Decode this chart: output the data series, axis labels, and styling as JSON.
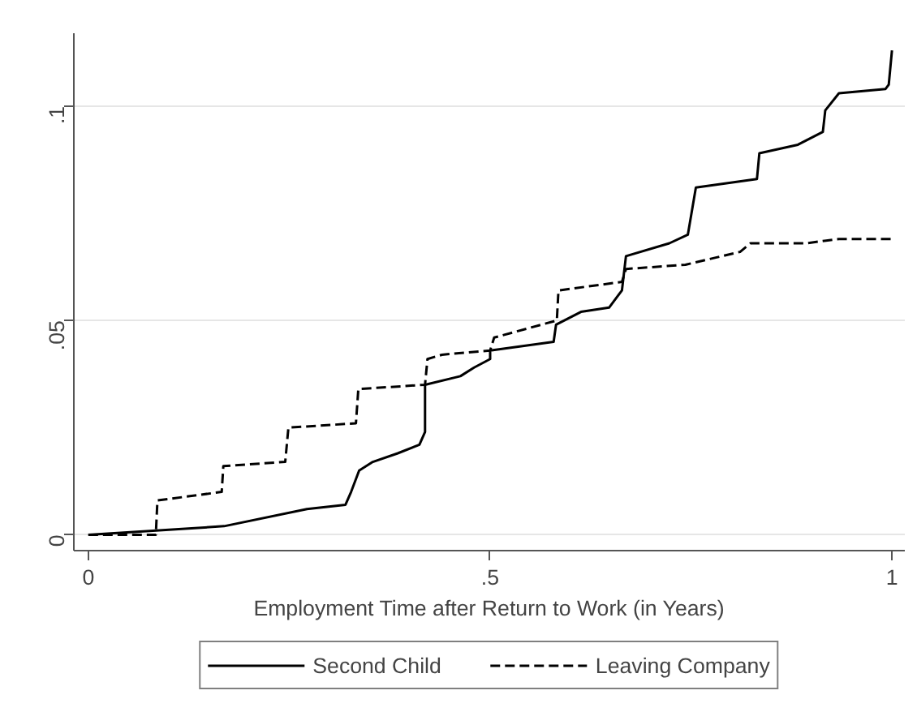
{
  "chart_data": {
    "type": "line",
    "xlabel": "Employment Time after Return to Work (in Years)",
    "xlim": [
      -0.018,
      1.016
    ],
    "ylim": [
      -0.0037,
      0.117
    ],
    "xticks": [
      0,
      {
        "value": 0.5,
        "label": ".5"
      },
      1
    ],
    "yticks": [
      0,
      {
        "value": 0.05,
        "label": ".05"
      },
      {
        "value": 0.1,
        "label": ".1"
      }
    ],
    "grid": "y",
    "legend": "bottom",
    "marker": "none",
    "series": [
      {
        "name": "Second Child",
        "color": "#000000",
        "line_style": "solid",
        "x": [
          0,
          0.169,
          0.272,
          0.32,
          0.327,
          0.337,
          0.354,
          0.385,
          0.412,
          0.419,
          0.419,
          0.463,
          0.48,
          0.5,
          0.5,
          0.579,
          0.582,
          0.613,
          0.648,
          0.664,
          0.669,
          0.723,
          0.746,
          0.756,
          0.832,
          0.835,
          0.883,
          0.914,
          0.917,
          0.934,
          0.992,
          0.996,
          1.0
        ],
        "values": [
          0,
          0.002,
          0.006,
          0.007,
          0.01,
          0.015,
          0.017,
          0.019,
          0.021,
          0.024,
          0.035,
          0.037,
          0.039,
          0.041,
          0.043,
          0.045,
          0.049,
          0.052,
          0.053,
          0.057,
          0.065,
          0.068,
          0.07,
          0.081,
          0.083,
          0.089,
          0.091,
          0.094,
          0.099,
          0.103,
          0.104,
          0.105,
          0.113
        ]
      },
      {
        "name": "Leaving Company",
        "color": "#000000",
        "line_style": "dashed",
        "x": [
          0,
          0.084,
          0.086,
          0.166,
          0.168,
          0.245,
          0.249,
          0.333,
          0.336,
          0.419,
          0.422,
          0.44,
          0.5,
          0.505,
          0.583,
          0.585,
          0.664,
          0.669,
          0.743,
          0.811,
          0.824,
          0.893,
          0.934,
          1.0
        ],
        "values": [
          0,
          0,
          0.008,
          0.01,
          0.016,
          0.017,
          0.025,
          0.026,
          0.034,
          0.035,
          0.041,
          0.042,
          0.043,
          0.046,
          0.05,
          0.057,
          0.059,
          0.062,
          0.063,
          0.066,
          0.068,
          0.068,
          0.069,
          0.069
        ]
      }
    ]
  }
}
